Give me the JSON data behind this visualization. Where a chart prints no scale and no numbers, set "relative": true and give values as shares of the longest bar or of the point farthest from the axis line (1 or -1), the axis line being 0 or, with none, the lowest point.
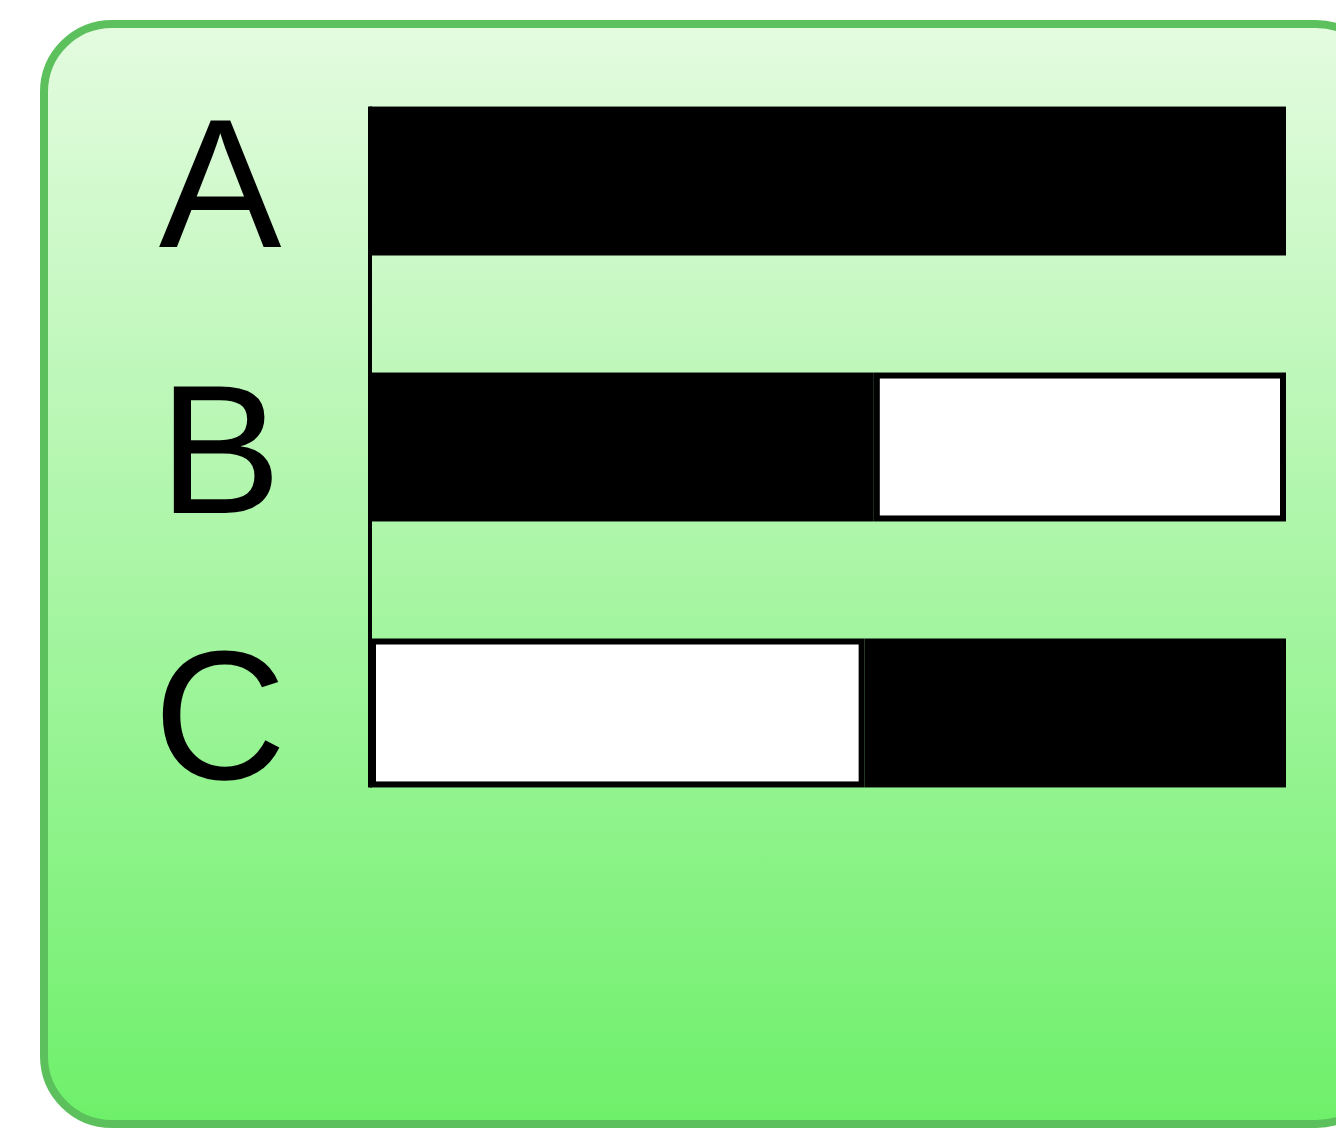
{
  "chart_data": {
    "type": "bar",
    "orientation": "horizontal",
    "stacked": true,
    "relative": true,
    "categories": [
      "A",
      "B",
      "C"
    ],
    "series": [
      {
        "color": "#000000",
        "values": [
          1,
          0.55,
          0
        ]
      },
      {
        "color": "#ffffff",
        "values": [
          0,
          0.45,
          0.54
        ]
      },
      {
        "color": "#000000",
        "values": [
          0,
          0,
          0.46
        ]
      }
    ]
  }
}
